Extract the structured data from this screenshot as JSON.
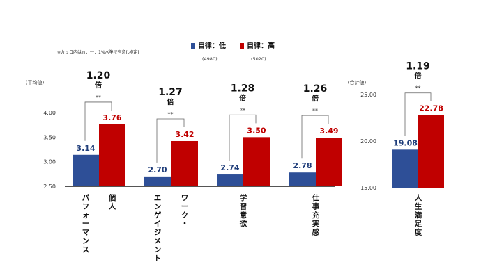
{
  "note": "※カッコ内はｎ、**：1%水準で有意(t検定)",
  "legend": [
    {
      "label": "自律：低",
      "n": "(4980)",
      "color": "#2e4f97"
    },
    {
      "label": "自律：高",
      "n": "(5020)",
      "color": "#c00000"
    }
  ],
  "chart_data": [
    {
      "type": "bar",
      "ylabel": "(平均値)",
      "ylim": [
        2.5,
        4.0
      ],
      "yticks": [
        "2.50",
        "3.00",
        "3.50",
        "4.00"
      ],
      "categories": [
        {
          "lines": [
            "個人",
            "パフォーマンス"
          ]
        },
        {
          "lines": [
            "ワーク・",
            "エンゲイジメント"
          ]
        },
        {
          "lines": [
            "学習意欲"
          ]
        },
        {
          "lines": [
            "仕事充実感"
          ]
        }
      ],
      "series": [
        {
          "name": "自律：低",
          "values": [
            3.14,
            2.7,
            2.74,
            2.78
          ],
          "labels": [
            "3.14",
            "2.70",
            "2.74",
            "2.78"
          ]
        },
        {
          "name": "自律：高",
          "values": [
            3.76,
            3.42,
            3.5,
            3.49
          ],
          "labels": [
            "3.76",
            "3.42",
            "3.50",
            "3.49"
          ]
        }
      ],
      "ratios": [
        "1.20",
        "1.27",
        "1.28",
        "1.26"
      ],
      "ratio_suffix": "倍",
      "significance": [
        "**",
        "**",
        "**",
        "**"
      ]
    },
    {
      "type": "bar",
      "ylabel": "(合計値)",
      "ylim": [
        15.0,
        25.0
      ],
      "yticks": [
        "15.00",
        "20.00",
        "25.00"
      ],
      "categories": [
        {
          "lines": [
            "人生満足度"
          ]
        }
      ],
      "series": [
        {
          "name": "自律：低",
          "values": [
            19.08
          ],
          "labels": [
            "19.08"
          ]
        },
        {
          "name": "自律：高",
          "values": [
            22.78
          ],
          "labels": [
            "22.78"
          ]
        }
      ],
      "ratios": [
        "1.19"
      ],
      "ratio_suffix": "倍",
      "significance": [
        "**"
      ]
    }
  ]
}
